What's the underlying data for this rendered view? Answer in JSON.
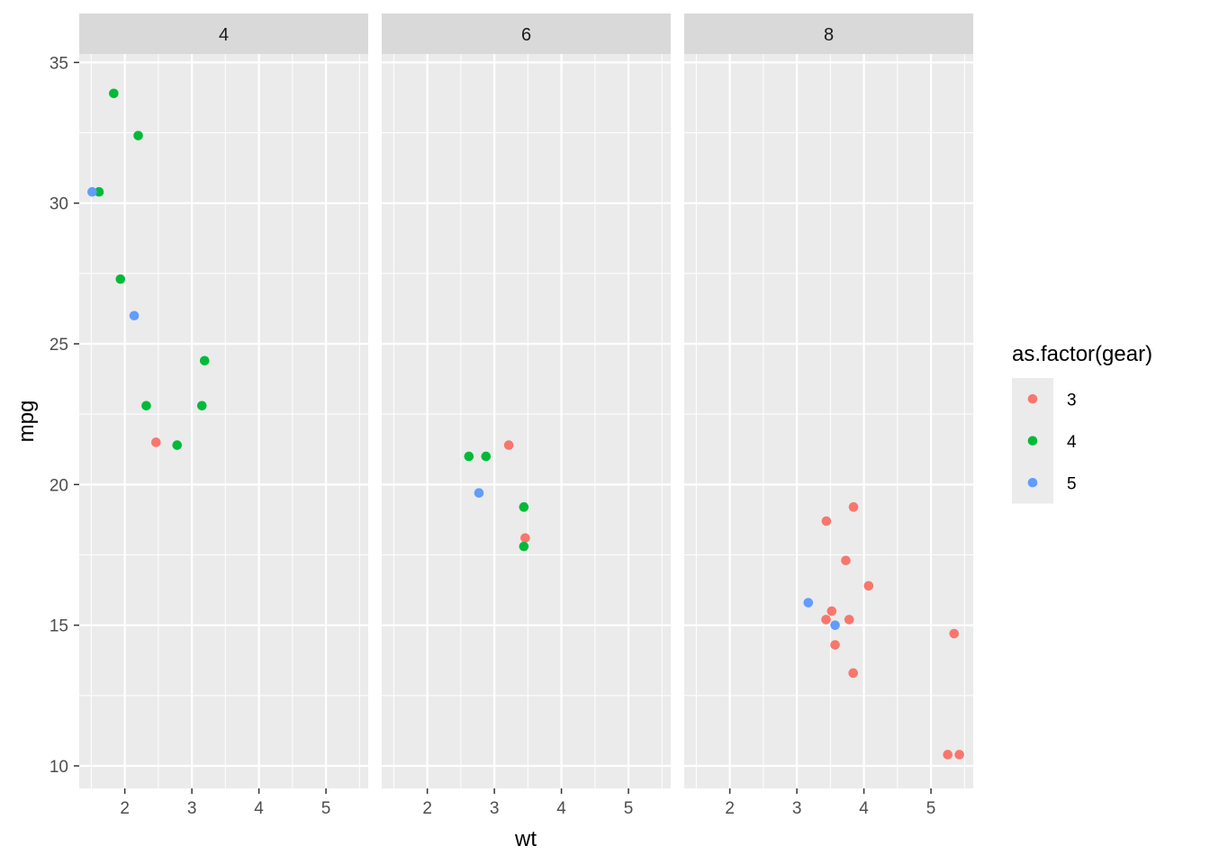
{
  "chart_data": {
    "type": "scatter",
    "xlabel": "wt",
    "ylabel": "mpg",
    "facet_labels": [
      "4",
      "6",
      "8"
    ],
    "xlim": [
      1.32,
      5.63
    ],
    "ylim": [
      9.2,
      35.3
    ],
    "x_ticks": [
      2,
      3,
      4,
      5
    ],
    "y_ticks": [
      10,
      15,
      20,
      25,
      30,
      35
    ],
    "grid": true,
    "legend": {
      "title": "as.factor(gear)",
      "position": "right",
      "entries": [
        {
          "label": "3",
          "color": "#F8766D"
        },
        {
          "label": "4",
          "color": "#00BA38"
        },
        {
          "label": "5",
          "color": "#619CFF"
        }
      ]
    },
    "panels": [
      {
        "facet": "4",
        "points": [
          {
            "x": 2.32,
            "y": 22.8,
            "gear": "4"
          },
          {
            "x": 3.19,
            "y": 24.4,
            "gear": "4"
          },
          {
            "x": 3.15,
            "y": 22.8,
            "gear": "4"
          },
          {
            "x": 2.2,
            "y": 32.4,
            "gear": "4"
          },
          {
            "x": 1.615,
            "y": 30.4,
            "gear": "4"
          },
          {
            "x": 1.835,
            "y": 33.9,
            "gear": "4"
          },
          {
            "x": 2.465,
            "y": 21.5,
            "gear": "3"
          },
          {
            "x": 1.935,
            "y": 27.3,
            "gear": "4"
          },
          {
            "x": 2.14,
            "y": 26.0,
            "gear": "5"
          },
          {
            "x": 1.513,
            "y": 30.4,
            "gear": "5"
          },
          {
            "x": 2.78,
            "y": 21.4,
            "gear": "4"
          }
        ]
      },
      {
        "facet": "6",
        "points": [
          {
            "x": 2.62,
            "y": 21.0,
            "gear": "4"
          },
          {
            "x": 2.875,
            "y": 21.0,
            "gear": "4"
          },
          {
            "x": 3.215,
            "y": 21.4,
            "gear": "3"
          },
          {
            "x": 3.46,
            "y": 18.1,
            "gear": "3"
          },
          {
            "x": 3.44,
            "y": 19.2,
            "gear": "4"
          },
          {
            "x": 3.44,
            "y": 17.8,
            "gear": "4"
          },
          {
            "x": 2.77,
            "y": 19.7,
            "gear": "5"
          }
        ]
      },
      {
        "facet": "8",
        "points": [
          {
            "x": 3.44,
            "y": 18.7,
            "gear": "3"
          },
          {
            "x": 3.57,
            "y": 14.3,
            "gear": "3"
          },
          {
            "x": 4.07,
            "y": 16.4,
            "gear": "3"
          },
          {
            "x": 3.73,
            "y": 17.3,
            "gear": "3"
          },
          {
            "x": 3.78,
            "y": 15.2,
            "gear": "3"
          },
          {
            "x": 5.25,
            "y": 10.4,
            "gear": "3"
          },
          {
            "x": 5.424,
            "y": 10.4,
            "gear": "3"
          },
          {
            "x": 5.345,
            "y": 14.7,
            "gear": "3"
          },
          {
            "x": 3.52,
            "y": 15.5,
            "gear": "3"
          },
          {
            "x": 3.435,
            "y": 15.2,
            "gear": "3"
          },
          {
            "x": 3.84,
            "y": 13.3,
            "gear": "3"
          },
          {
            "x": 3.845,
            "y": 19.2,
            "gear": "3"
          },
          {
            "x": 3.17,
            "y": 15.8,
            "gear": "5"
          },
          {
            "x": 3.57,
            "y": 15.0,
            "gear": "5"
          }
        ]
      }
    ]
  }
}
